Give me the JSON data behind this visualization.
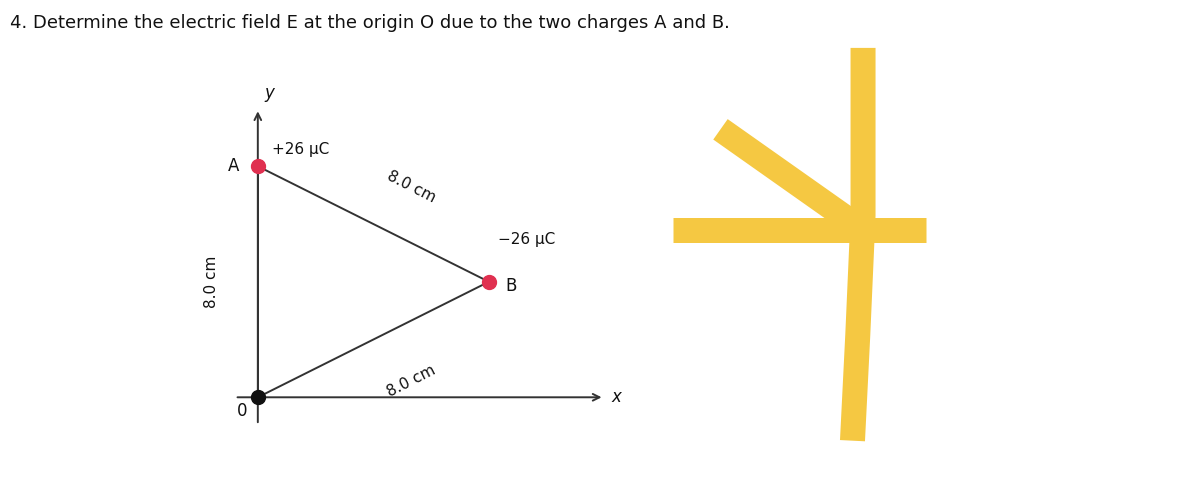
{
  "title": "4. Determine the electric field E at the origin O due to the two charges A and B.",
  "title_fontsize": 13,
  "bg_color": "#ffffff",
  "diagram": {
    "O": [
      0.0,
      0.0
    ],
    "A": [
      0.0,
      1.0
    ],
    "B": [
      1.0,
      0.5
    ],
    "charge_A": "+26 μC",
    "charge_B": "−26 μC",
    "dist_AB": "8.0 cm",
    "dist_OA": "8.0 cm",
    "dist_OB": "8.0 cm",
    "dot_color_A": "#e03050",
    "dot_color_B": "#e03050",
    "dot_color_O": "#111111",
    "line_color": "#333333",
    "axis_color": "#333333"
  },
  "number4": {
    "color": "#F5C842",
    "lw": 18
  }
}
